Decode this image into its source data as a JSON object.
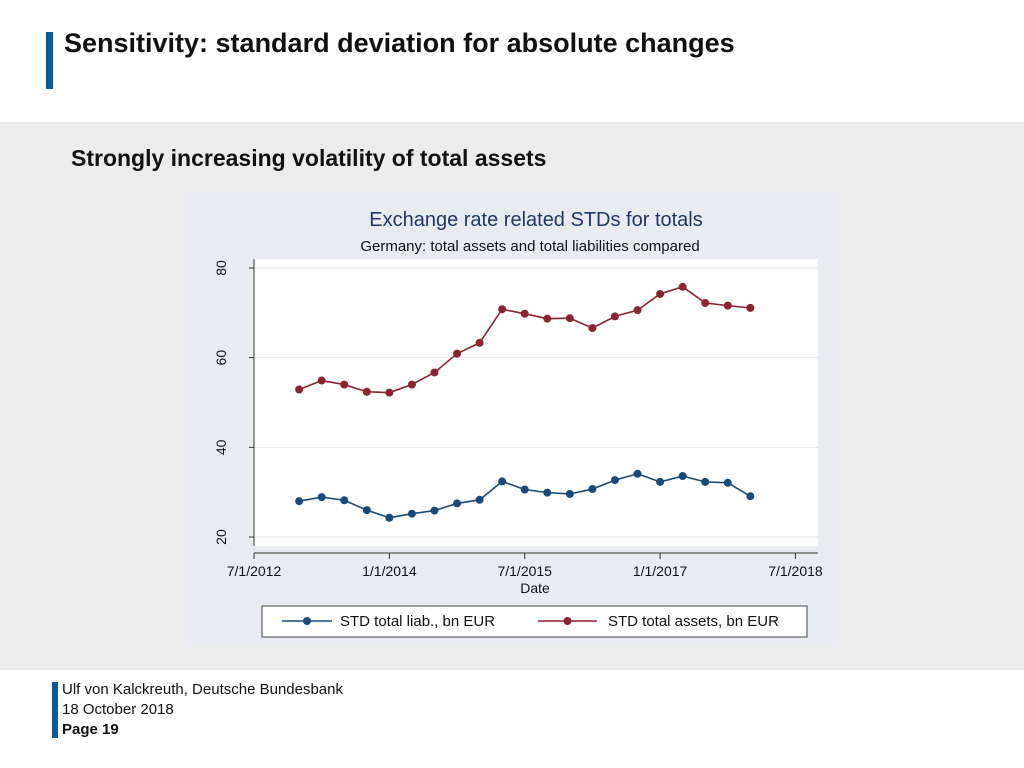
{
  "colors": {
    "accent": "#0a5a9e",
    "series_liab": "#1a4a7a",
    "series_assets": "#8b2330",
    "chart_title": "#1f3864",
    "panel_bg": "#ececec",
    "chart_bg": "#e8ecf2"
  },
  "header": {
    "title": "Sensitivity: standard deviation for absolute changes"
  },
  "slide": {
    "subtitle": "Strongly increasing volatility of total assets"
  },
  "chart_data": {
    "type": "line",
    "title": "Exchange rate related STDs for totals",
    "subtitle": "Germany: total assets and total liabilities compared",
    "xlabel": "Date",
    "ylabel": "",
    "x_ticks": [
      "7/1/2012",
      "1/1/2014",
      "7/1/2015",
      "1/1/2017",
      "7/1/2018"
    ],
    "y_ticks": [
      20,
      40,
      60,
      80
    ],
    "ylim": [
      18,
      82
    ],
    "x_index_range": [
      -2,
      23
    ],
    "grid": true,
    "legend_position": "bottom",
    "series": [
      {
        "name": "STD total liab., bn EUR",
        "values": [
          28.0,
          28.9,
          28.2,
          26.0,
          24.3,
          25.2,
          25.9,
          27.5,
          28.3,
          32.4,
          30.6,
          29.9,
          29.6,
          30.7,
          32.7,
          34.1,
          32.3,
          33.6,
          32.3,
          32.1,
          29.1
        ]
      },
      {
        "name": "STD total assets, bn EUR",
        "values": [
          52.9,
          54.9,
          54.0,
          52.4,
          52.2,
          54.0,
          56.7,
          60.9,
          63.3,
          70.8,
          69.8,
          68.7,
          68.8,
          66.6,
          69.2,
          70.6,
          74.2,
          75.8,
          72.2,
          71.6,
          71.1
        ]
      }
    ]
  },
  "footer": {
    "author": "Ulf von Kalckreuth, Deutsche Bundesbank",
    "date": "18 October 2018",
    "page": "Page 19"
  }
}
